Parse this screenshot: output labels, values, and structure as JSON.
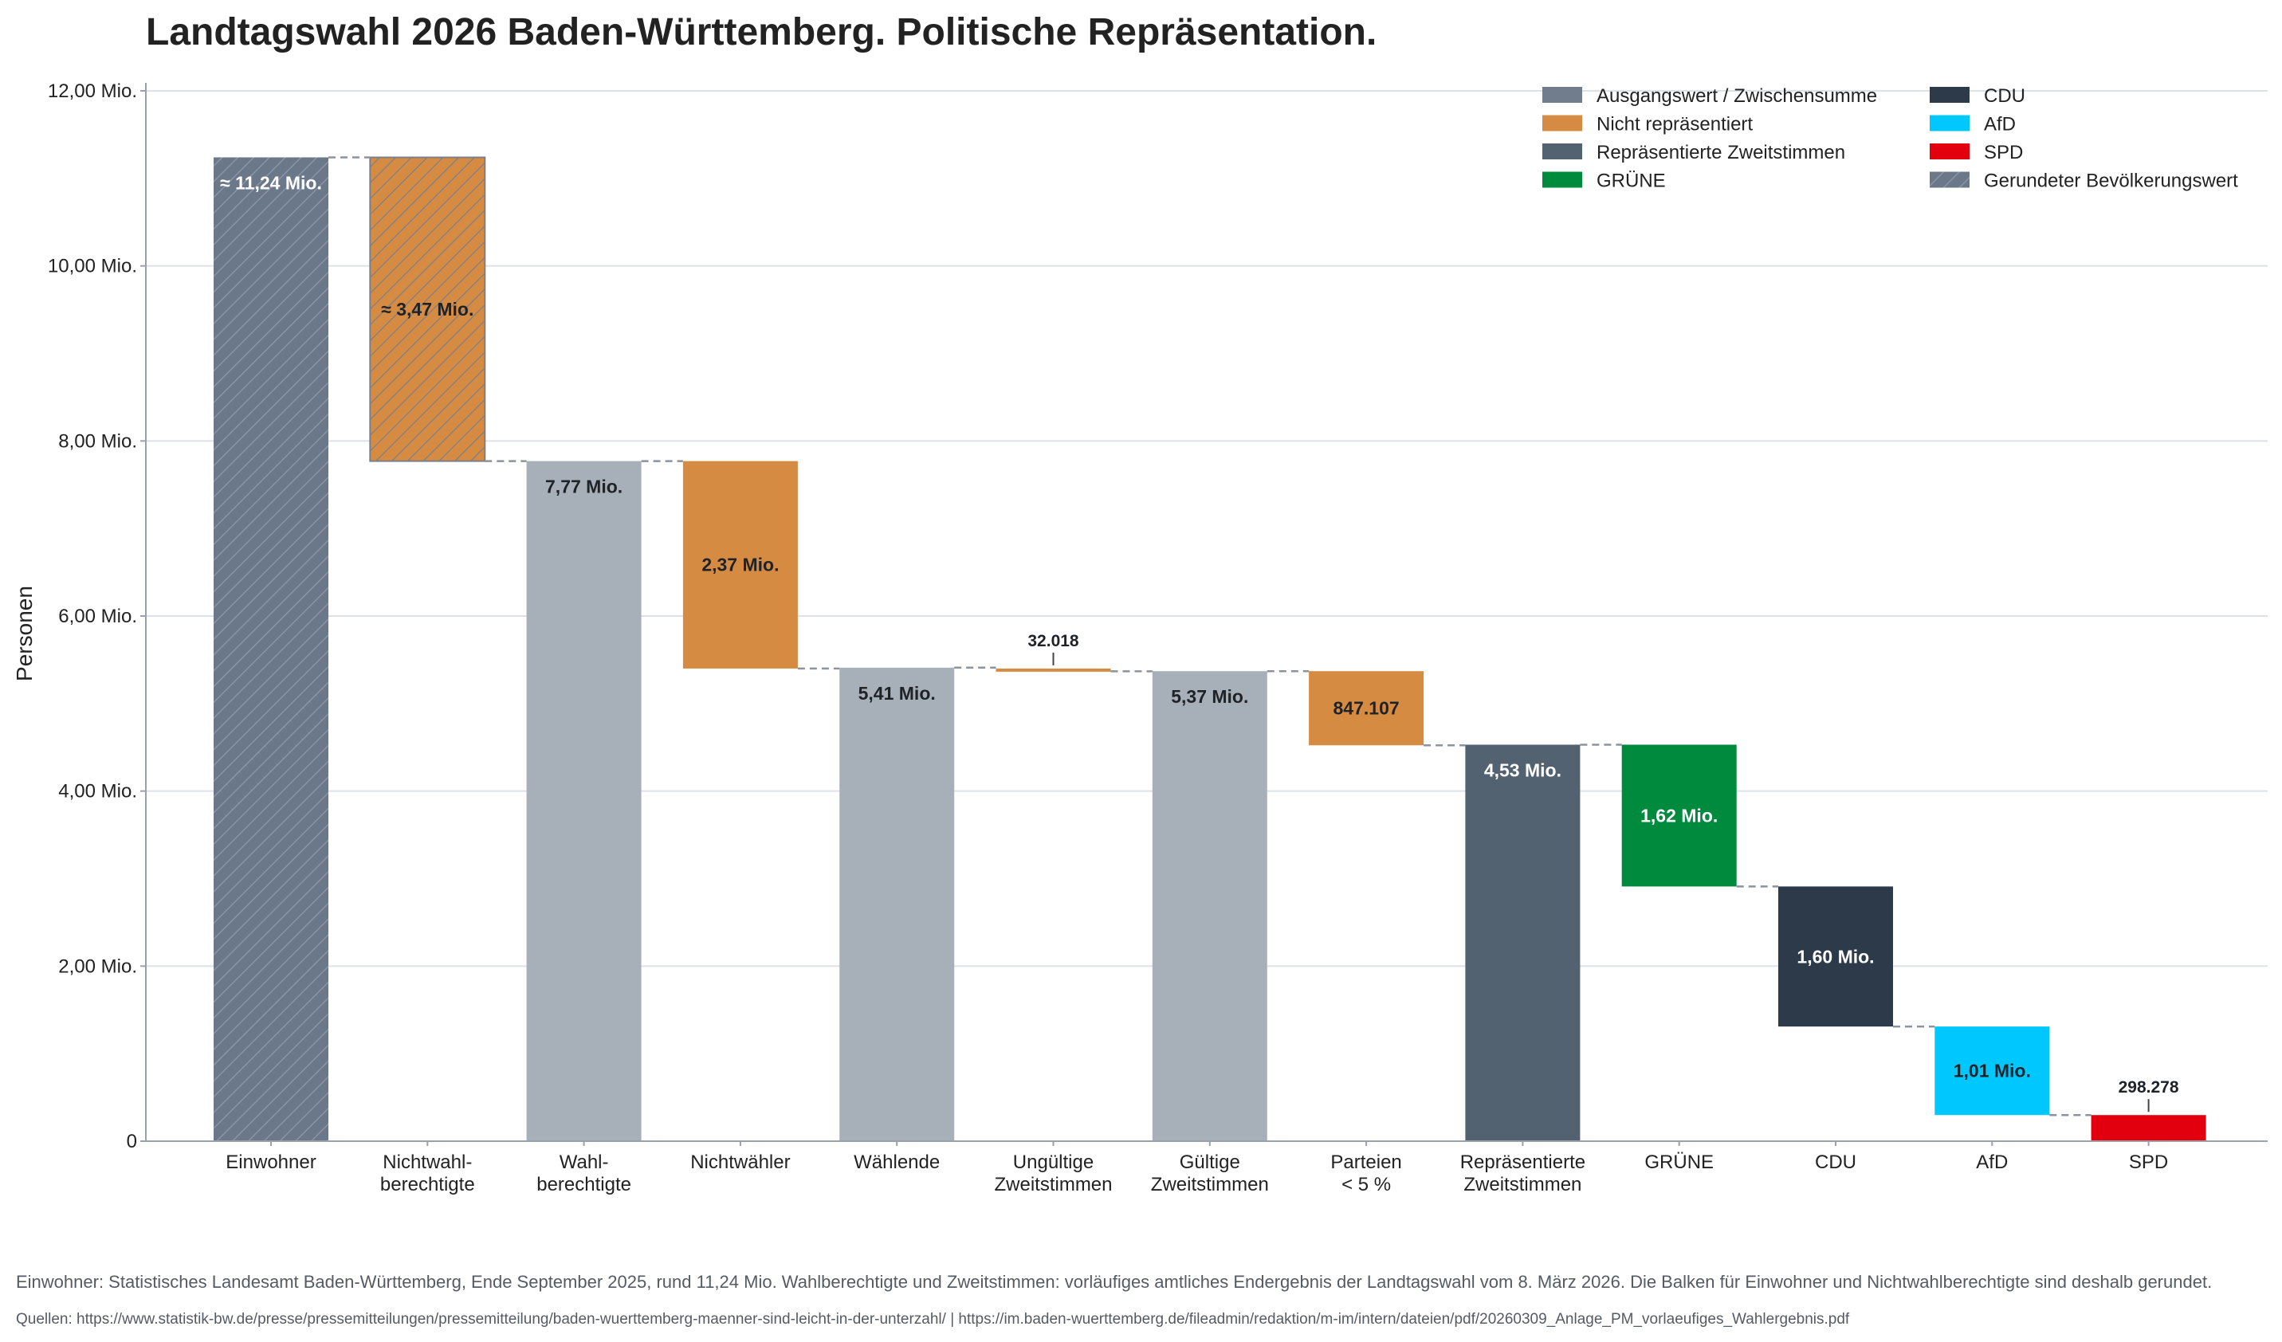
{
  "chart_data": {
    "type": "waterfall",
    "title": "Landtagswahl 2026 Baden-Württemberg. Politische Repräsentation.",
    "ylabel": "Personen",
    "ylim": [
      0,
      12000000
    ],
    "yticks": [
      {
        "value": 0,
        "label": "0"
      },
      {
        "value": 2000000,
        "label": "2,00 Mio."
      },
      {
        "value": 4000000,
        "label": "4,00 Mio."
      },
      {
        "value": 6000000,
        "label": "6,00 Mio."
      },
      {
        "value": 8000000,
        "label": "8,00 Mio."
      },
      {
        "value": 10000000,
        "label": "10,00 Mio."
      },
      {
        "value": 12000000,
        "label": "12,00 Mio."
      }
    ],
    "grid": true,
    "legend_position": "top-right",
    "bars": [
      {
        "category": [
          "Einwohner"
        ],
        "start": 0,
        "end": 11240000,
        "kind": "Gerundeter Bevölkerungswert",
        "label": "≈ 11,24 Mio.",
        "color": "#6b7889",
        "hatched": true
      },
      {
        "category": [
          "Nichtwahl-",
          "berechtigte"
        ],
        "start": 7770000,
        "end": 11240000,
        "kind": "Nicht repräsentiert",
        "label": "≈ 3,47 Mio.",
        "color": "#d68b43",
        "hatched": true
      },
      {
        "category": [
          "Wahl-",
          "berechtigte"
        ],
        "start": 0,
        "end": 7770000,
        "kind": "Zwischensumme",
        "label": "7,77 Mio.",
        "color": "#a7b0b9"
      },
      {
        "category": [
          "Nichtwähler"
        ],
        "start": 5400000,
        "end": 7770000,
        "kind": "Nicht repräsentiert",
        "label": "2,37 Mio.",
        "color": "#d68b43"
      },
      {
        "category": [
          "Wählende"
        ],
        "start": 0,
        "end": 5410000,
        "kind": "Zwischensumme",
        "label": "5,41 Mio.",
        "color": "#a7b0b9"
      },
      {
        "category": [
          "Ungültige",
          "Zweitstimmen"
        ],
        "start": 5368000,
        "end": 5400018,
        "kind": "Nicht repräsentiert",
        "label": "32.018",
        "color": "#d68b43"
      },
      {
        "category": [
          "Gültige",
          "Zweitstimmen"
        ],
        "start": 0,
        "end": 5370000,
        "kind": "Zwischensumme",
        "label": "5,37 Mio.",
        "color": "#a7b0b9"
      },
      {
        "category": [
          "Parteien",
          "< 5 %"
        ],
        "start": 4522893,
        "end": 5370000,
        "kind": "Nicht repräsentiert",
        "label": "847.107",
        "color": "#d68b43"
      },
      {
        "category": [
          "Repräsentierte",
          "Zweitstimmen"
        ],
        "start": 0,
        "end": 4530000,
        "kind": "Repräsentierte Zweitstimmen",
        "label": "4,53 Mio.",
        "color": "#536270"
      },
      {
        "category": [
          "GRÜNE"
        ],
        "start": 2910000,
        "end": 4530000,
        "kind": "GRÜNE",
        "label": "1,62 Mio.",
        "color": "#008a3e"
      },
      {
        "category": [
          "CDU"
        ],
        "start": 1310000,
        "end": 2910000,
        "kind": "CDU",
        "label": "1,60 Mio.",
        "color": "#2c3a4a"
      },
      {
        "category": [
          "AfD"
        ],
        "start": 298278,
        "end": 1310000,
        "kind": "AfD",
        "label": "1,01 Mio.",
        "color": "#00c8ff"
      },
      {
        "category": [
          "SPD"
        ],
        "start": 0,
        "end": 298278,
        "kind": "SPD",
        "label": "298.278",
        "color": "#e2000f"
      }
    ],
    "legend": [
      {
        "label": "Ausgangswert / Zwischensumme",
        "color": "#717d8c",
        "hatched": false
      },
      {
        "label": "Nicht repräsentiert",
        "color": "#d68b43",
        "hatched": false
      },
      {
        "label": "Repräsentierte Zweitstimmen",
        "color": "#536270",
        "hatched": false
      },
      {
        "label": "GRÜNE",
        "color": "#008a3e",
        "hatched": false
      },
      {
        "label": "CDU",
        "color": "#2c3a4a",
        "hatched": false
      },
      {
        "label": "AfD",
        "color": "#00c8ff",
        "hatched": false
      },
      {
        "label": "SPD",
        "color": "#e2000f",
        "hatched": false
      },
      {
        "label": "Gerundeter Bevölkerungswert",
        "color": "#6b7889",
        "hatched": true
      }
    ]
  },
  "footnote": "Einwohner: Statistisches Landesamt Baden-Württemberg, Ende September 2025, rund 11,24 Mio. Wahlberechtigte und Zweitstimmen: vorläufiges amtliches Endergebnis der Landtagswahl vom 8. März 2026. Die Balken für Einwohner und Nichtwahlberechtigte sind deshalb gerundet.",
  "sources": "Quellen: https://www.statistik-bw.de/presse/pressemitteilungen/pressemitteilung/baden-wuerttemberg-maenner-sind-leicht-in-der-unterzahl/ | https://im.baden-wuerttemberg.de/fileadmin/redaktion/m-im/intern/dateien/pdf/20260309_Anlage_PM_vorlaeufiges_Wahlergebnis.pdf",
  "colors": {
    "grid": "#dde1e8",
    "axis": "#9aa1ab",
    "connector": "#8c939c"
  }
}
